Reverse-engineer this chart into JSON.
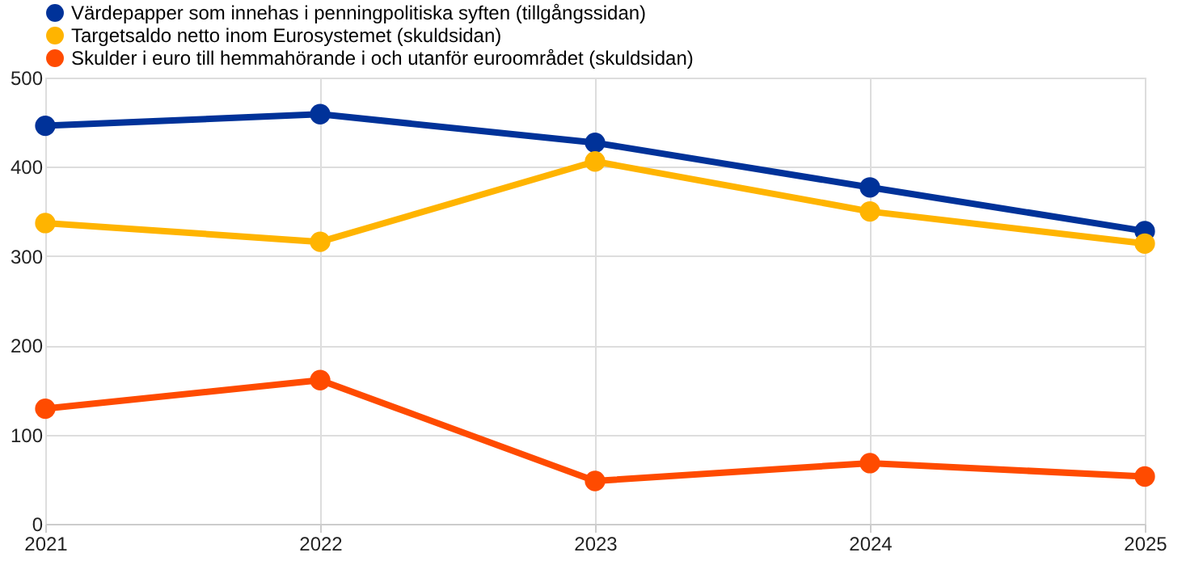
{
  "chart_data": {
    "type": "line",
    "x": [
      2021,
      2022,
      2023,
      2024,
      2025
    ],
    "series": [
      {
        "name": "Värdepapper som innehas i penningpolitiska syften (tillgångssidan)",
        "color": "#003299",
        "values": [
          446,
          459,
          427,
          377,
          328
        ]
      },
      {
        "name": "Targetsaldo netto inom Eurosystemet (skuldsidan)",
        "color": "#ffb400",
        "values": [
          337,
          316,
          406,
          350,
          314
        ]
      },
      {
        "name": "Skulder i euro till hemmahörande i och utanför euroområdet (skuldsidan)",
        "color": "#ff4b00",
        "values": [
          129,
          161,
          48,
          68,
          53
        ]
      }
    ],
    "xlim": [
      2021,
      2025
    ],
    "xticks": [
      2021,
      2022,
      2023,
      2024,
      2025
    ],
    "ylim": [
      0,
      500
    ],
    "yticks": [
      0,
      100,
      200,
      300,
      400,
      500
    ],
    "grid": true,
    "legend": "top left",
    "marker": "circle",
    "line_style": "solid"
  }
}
